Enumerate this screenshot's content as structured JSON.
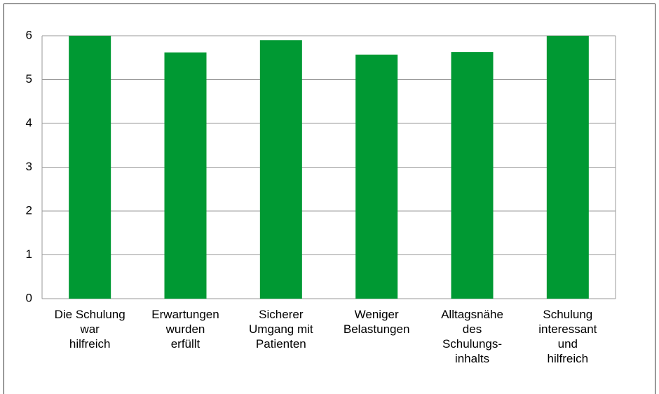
{
  "chart_data": {
    "type": "bar",
    "categories": [
      "Die Schulung\nwar\nhilfreich",
      "Erwartungen\nwurden\nerfüllt",
      "Sicherer\nUmgang mit\nPatienten",
      "Weniger\nBelastungen",
      "Alltagsnähe\ndes\nSchulungs-\ninhalts",
      "Schulung\ninteressant\nund\nhilfreich"
    ],
    "values": [
      6,
      5.62,
      5.9,
      5.57,
      5.63,
      6
    ],
    "color": "#009933",
    "ylim": [
      0,
      6
    ],
    "yticks": [
      0,
      1,
      2,
      3,
      4,
      5,
      6
    ],
    "grid": true
  }
}
